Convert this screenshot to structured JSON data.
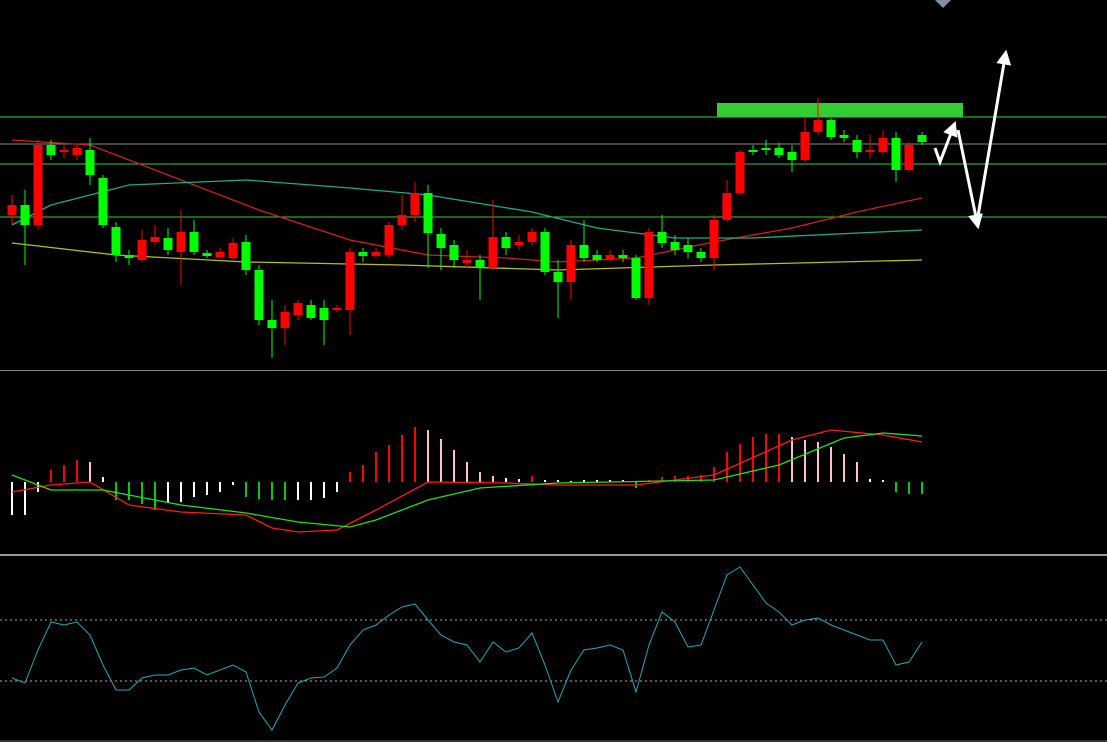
{
  "chart_data": [
    {
      "type": "candlestick",
      "ylim": [
        0,
        370
      ],
      "up_color": "#ff0000",
      "down_color": "#00ff00",
      "open": [
        155,
        165,
        145,
        225,
        218,
        215,
        220,
        192,
        143,
        115,
        110,
        128,
        132,
        118,
        138,
        117,
        113,
        112,
        128,
        100,
        50,
        42,
        55,
        65,
        62,
        60,
        60,
        118,
        114,
        115,
        145,
        155,
        177,
        136,
        125,
        107,
        110,
        102,
        133,
        125,
        128,
        138,
        98,
        88,
        125,
        115,
        110,
        115,
        112,
        72,
        138,
        128,
        125,
        118,
        112,
        150,
        177,
        220,
        222,
        222,
        218,
        210,
        238,
        250,
        235,
        230,
        218,
        218,
        232,
        200,
        235
      ],
      "high": [
        175,
        180,
        230,
        230,
        225,
        225,
        232,
        195,
        148,
        120,
        140,
        145,
        142,
        160,
        150,
        120,
        122,
        132,
        135,
        105,
        70,
        65,
        70,
        70,
        70,
        65,
        122,
        122,
        122,
        148,
        175,
        188,
        185,
        142,
        130,
        120,
        115,
        170,
        138,
        135,
        142,
        142,
        110,
        130,
        150,
        120,
        120,
        120,
        115,
        142,
        155,
        135,
        132,
        122,
        155,
        190,
        220,
        225,
        230,
        227,
        225,
        252,
        272,
        252,
        240,
        235,
        235,
        240,
        238,
        228,
        238
      ],
      "low": [
        145,
        105,
        140,
        210,
        212,
        210,
        185,
        142,
        108,
        105,
        108,
        125,
        115,
        85,
        115,
        112,
        112,
        110,
        95,
        45,
        12,
        25,
        50,
        50,
        25,
        58,
        35,
        108,
        112,
        112,
        140,
        148,
        102,
        100,
        102,
        102,
        70,
        100,
        115,
        120,
        125,
        95,
        52,
        70,
        108,
        108,
        108,
        108,
        70,
        65,
        122,
        115,
        112,
        108,
        100,
        148,
        175,
        215,
        215,
        212,
        198,
        208,
        235,
        230,
        228,
        212,
        212,
        215,
        188,
        198,
        225
      ],
      "close": [
        165,
        145,
        225,
        215,
        220,
        222,
        195,
        145,
        115,
        112,
        130,
        133,
        120,
        138,
        118,
        114,
        118,
        127,
        100,
        50,
        42,
        58,
        67,
        52,
        50,
        62,
        118,
        114,
        118,
        145,
        155,
        177,
        137,
        122,
        110,
        110,
        102,
        133,
        122,
        128,
        138,
        98,
        88,
        125,
        112,
        110,
        115,
        112,
        72,
        138,
        127,
        120,
        118,
        112,
        150,
        177,
        218,
        218,
        220,
        215,
        210,
        238,
        250,
        233,
        232,
        218,
        220,
        232,
        200,
        225,
        228
      ],
      "overlays": [
        {
          "color": "#cc2222",
          "x": [
            0,
            6,
            13,
            19,
            26,
            32,
            38,
            42,
            48,
            54,
            60,
            65,
            70
          ],
          "values": [
            230,
            225,
            190,
            160,
            130,
            115,
            112,
            108,
            112,
            128,
            142,
            158,
            172
          ]
        },
        {
          "color": "#22aa88",
          "x": [
            0,
            3,
            9,
            18,
            26,
            32,
            40,
            45,
            51,
            57,
            70
          ],
          "values": [
            145,
            165,
            185,
            190,
            182,
            175,
            158,
            142,
            132,
            132,
            140
          ]
        },
        {
          "color": "#bbbb22",
          "x": [
            0,
            8,
            18,
            30,
            42,
            54,
            70
          ],
          "values": [
            127,
            115,
            108,
            105,
            100,
            105,
            110
          ]
        }
      ],
      "levels": [
        {
          "value": 253,
          "color": "#33cc33"
        },
        {
          "value": 226,
          "color": "#888888"
        },
        {
          "value": 206,
          "color": "#33cc33"
        },
        {
          "value": 153,
          "color": "#33cc33"
        }
      ]
    },
    {
      "type": "histogram",
      "ylim": [
        -71,
        110
      ],
      "values": [
        -33,
        -33,
        -10,
        12,
        17,
        22,
        20,
        5,
        -18,
        -18,
        -22,
        -28,
        -20,
        -20,
        -15,
        -13,
        -10,
        -3,
        -15,
        -17,
        -18,
        -18,
        -18,
        -18,
        -16,
        -10,
        10,
        17,
        30,
        37,
        47,
        55,
        52,
        43,
        32,
        20,
        10,
        6,
        4,
        3,
        6,
        2,
        2,
        1,
        2,
        2,
        2,
        2,
        -6,
        2,
        5,
        6,
        6,
        7,
        15,
        30,
        38,
        45,
        48,
        48,
        45,
        42,
        40,
        35,
        28,
        20,
        3,
        2,
        -10,
        -12,
        -12
      ],
      "colors": [
        "#ffffff",
        "#ffffff",
        "#ffffff",
        "#ff0000",
        "#ff0000",
        "#ff0000",
        "#ffc0cb",
        "#ffffff",
        "#00cc00",
        "#00cc00",
        "#00cc00",
        "#00cc00",
        "#ffffff",
        "#ffffff",
        "#ffffff",
        "#ffffff",
        "#ffffff",
        "#ffffff",
        "#00cc00",
        "#00cc00",
        "#00cc00",
        "#00cc00",
        "#ffffff",
        "#ffffff",
        "#ffffff",
        "#ffffff",
        "#ff0000",
        "#ff0000",
        "#ff0000",
        "#ff0000",
        "#ff0000",
        "#ff0000",
        "#ffc0cb",
        "#ffc0cb",
        "#ffc0cb",
        "#ffc0cb",
        "#ffc0cb",
        "#ffc0cb",
        "#ffffff",
        "#ffffff",
        "#ff0000",
        "#ffffff",
        "#ffffff",
        "#ffffff",
        "#ffffff",
        "#ffffff",
        "#ffffff",
        "#ffffff",
        "#00cc00",
        "#ff0000",
        "#ff0000",
        "#ff0000",
        "#ff0000",
        "#ff0000",
        "#ff0000",
        "#ff0000",
        "#ff0000",
        "#ff0000",
        "#ff0000",
        "#ff0000",
        "#ffc0cb",
        "#ffc0cb",
        "#ffc0cb",
        "#ffc0cb",
        "#ffc0cb",
        "#ffc0cb",
        "#ffffff",
        "#ffffff",
        "#00cc00",
        "#00cc00",
        "#00cc00"
      ],
      "overlays": [
        {
          "color": "#ff1a1a",
          "x": [
            0,
            3,
            6,
            9,
            13,
            18,
            20,
            22,
            25,
            28,
            32,
            38,
            42,
            48,
            54,
            60,
            63,
            67,
            70
          ],
          "values": [
            -10,
            -3,
            0,
            -23,
            -30,
            -33,
            -46,
            -50,
            -48,
            -28,
            0,
            -1,
            -3,
            -3,
            7,
            42,
            52,
            47,
            40
          ]
        },
        {
          "color": "#22dd22",
          "x": [
            0,
            3,
            7,
            13,
            18,
            22,
            26,
            28,
            32,
            36,
            42,
            54,
            59,
            64,
            67,
            70
          ],
          "values": [
            7,
            -8,
            -8,
            -23,
            -31,
            -40,
            -45,
            -38,
            -18,
            -6,
            -1,
            2,
            17,
            44,
            49,
            46
          ]
        }
      ]
    },
    {
      "type": "line",
      "ylim": [
        0,
        185
      ],
      "color": "#2aa8b8",
      "values": [
        64,
        59,
        92,
        120,
        117,
        120,
        107,
        77,
        52,
        52,
        64,
        67,
        67,
        72,
        74,
        67,
        72,
        77,
        70,
        30,
        12,
        37,
        59,
        64,
        65,
        74,
        97,
        112,
        117,
        127,
        135,
        138,
        122,
        107,
        100,
        97,
        80,
        100,
        90,
        94,
        109,
        77,
        40,
        72,
        92,
        94,
        97,
        92,
        50,
        97,
        130,
        120,
        95,
        97,
        132,
        167,
        175,
        157,
        139,
        130,
        117,
        122,
        124,
        117,
        112,
        107,
        102,
        102,
        77,
        80,
        100
      ],
      "levels": [
        {
          "value": 122,
          "color": "#aaaaaa"
        },
        {
          "value": 61,
          "color": "#aaaaaa"
        }
      ]
    }
  ]
}
